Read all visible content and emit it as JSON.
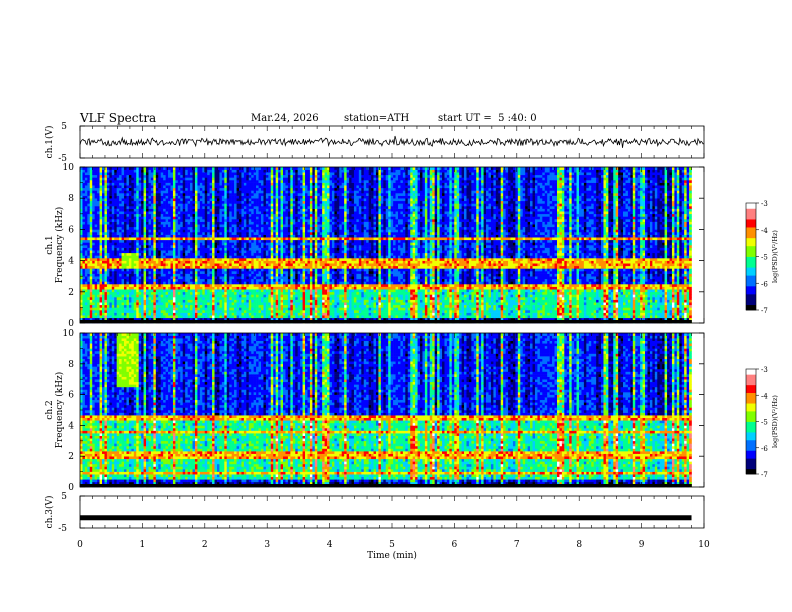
{
  "header": {
    "title": "VLF Spectra",
    "date": "Mar.24, 2026",
    "station": "station=ATH",
    "start": "start UT =  5 :40: 0"
  },
  "colors": {
    "colormap": [
      "#000000",
      "#00007a",
      "#0000ff",
      "#0070ff",
      "#00d0ff",
      "#00ff90",
      "#80ff00",
      "#f0ff00",
      "#ff9000",
      "#ff0000",
      "#ff8080",
      "#ffffff"
    ]
  },
  "chart_data": [
    {
      "type": "line",
      "name": "ch1-waveform",
      "ylabel": "ch.1(V)",
      "ylim": [
        -5,
        5
      ],
      "yticks": [
        "5",
        "-5"
      ],
      "xlim": [
        0,
        10
      ],
      "baseline": 0,
      "amplitude": 1.5
    },
    {
      "type": "heatmap",
      "name": "ch1-spectrogram",
      "ylabel": "ch.1\nFrequency (kHz)",
      "ylabel_lines": [
        "ch.1",
        "Frequency (kHz)"
      ],
      "ylim": [
        0,
        10
      ],
      "yticks": [
        "0",
        "2",
        "4",
        "6",
        "8",
        "10"
      ],
      "xlim": [
        0,
        9.8
      ],
      "colorbar": {
        "label": "log(PSD)(V²/Hz)",
        "range": [
          -7,
          -3
        ],
        "ticks": [
          "-3",
          "-4",
          "-5",
          "-6",
          "-7"
        ]
      },
      "features": {
        "bright_band_kHz": [
          0.3,
          2.4
        ],
        "lines_kHz": [
          2.3,
          3.7,
          4.0,
          5.4
        ],
        "burst_t_min": [
          0.65,
          0.95
        ],
        "burst_f_kHz": [
          3.5,
          4.5
        ]
      }
    },
    {
      "type": "heatmap",
      "name": "ch2-spectrogram",
      "ylabel": "ch.2\nFrequency (kHz)",
      "ylabel_lines": [
        "ch.2",
        "Frequency (kHz)"
      ],
      "ylim": [
        0,
        10
      ],
      "yticks": [
        "0",
        "2",
        "4",
        "6",
        "8",
        "10"
      ],
      "xlim": [
        0,
        9.8
      ],
      "colorbar": {
        "label": "log(PSD)(V²/Hz)",
        "range": [
          -7,
          -3
        ],
        "ticks": [
          "-3",
          "-4",
          "-5",
          "-6",
          "-7"
        ]
      },
      "features": {
        "bright_band_kHz": [
          0.5,
          4.5
        ],
        "lines_kHz": [
          0.9,
          2.0,
          2.2,
          3.6,
          4.5
        ],
        "burst_t_min": [
          0.6,
          0.95
        ],
        "burst_f_kHz": [
          6.5,
          10
        ]
      }
    },
    {
      "type": "line",
      "name": "ch3-waveform",
      "ylabel": "ch.3(V)",
      "ylim": [
        -5,
        5
      ],
      "yticks": [
        "5",
        "-5"
      ],
      "xlim": [
        0,
        9.8
      ],
      "baseline": -1.8,
      "amplitude": 0.25
    }
  ],
  "xaxis": {
    "label": "Time (min)",
    "range": [
      0,
      10
    ],
    "ticks": [
      "0",
      "1",
      "2",
      "3",
      "4",
      "5",
      "6",
      "7",
      "8",
      "9",
      "10"
    ]
  }
}
